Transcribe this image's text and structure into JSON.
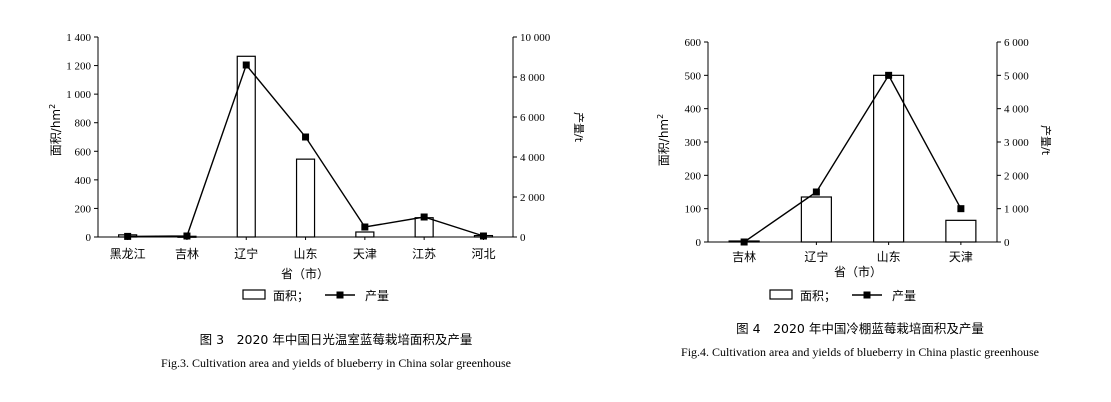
{
  "chart_data": [
    {
      "type": "bar+line",
      "categories": [
        "黑龙江",
        "吉林",
        "辽宁",
        "山东",
        "天津",
        "江苏",
        "河北"
      ],
      "series": [
        {
          "name": "面积",
          "type": "bar",
          "axis": "left",
          "values": [
            15,
            5,
            1265,
            545,
            35,
            135,
            10
          ]
        },
        {
          "name": "产量",
          "type": "line",
          "axis": "right",
          "values": [
            30,
            50,
            8600,
            5000,
            500,
            1000,
            50
          ]
        }
      ],
      "xlabel": "省（市）",
      "ylabel_left": "面积/hm",
      "ylabel_left_sup": "2",
      "ylabel_right": "产量/t",
      "ylim_left": [
        0,
        1400
      ],
      "ylim_right": [
        0,
        10000
      ],
      "yticks_left": [
        "0",
        "200",
        "400",
        "600",
        "800",
        "1 000",
        "1 200",
        "1 400"
      ],
      "yticks_right": [
        "0",
        "2 000",
        "4 000",
        "6 000",
        "8 000",
        "10 000"
      ],
      "legend": {
        "bar_label": "面积；",
        "line_label": "产量"
      },
      "caption_zh": "图 3　2020 年中国日光温室蓝莓栽培面积及产量",
      "caption_en": "Fig.3. Cultivation area and yields of blueberry in China solar greenhouse"
    },
    {
      "type": "bar+line",
      "categories": [
        "吉林",
        "辽宁",
        "山东",
        "天津"
      ],
      "series": [
        {
          "name": "面积",
          "type": "bar",
          "axis": "left",
          "values": [
            3,
            135,
            500,
            65
          ]
        },
        {
          "name": "产量",
          "type": "line",
          "axis": "right",
          "values": [
            0,
            1500,
            5000,
            1000
          ]
        }
      ],
      "xlabel": "省（市）",
      "ylabel_left": "面积/hm",
      "ylabel_left_sup": "2",
      "ylabel_right": "产量/t",
      "ylim_left": [
        0,
        600
      ],
      "ylim_right": [
        0,
        6000
      ],
      "yticks_left": [
        "0",
        "100",
        "200",
        "300",
        "400",
        "500",
        "600"
      ],
      "yticks_right": [
        "0",
        "1 000",
        "2 000",
        "3 000",
        "4 000",
        "5 000",
        "6 000"
      ],
      "legend": {
        "bar_label": "面积；",
        "line_label": "产量"
      },
      "caption_zh": "图 4　2020 年中国冷棚蓝莓栽培面积及产量",
      "caption_en": "Fig.4. Cultivation area and yields of blueberry in China plastic greenhouse"
    }
  ]
}
